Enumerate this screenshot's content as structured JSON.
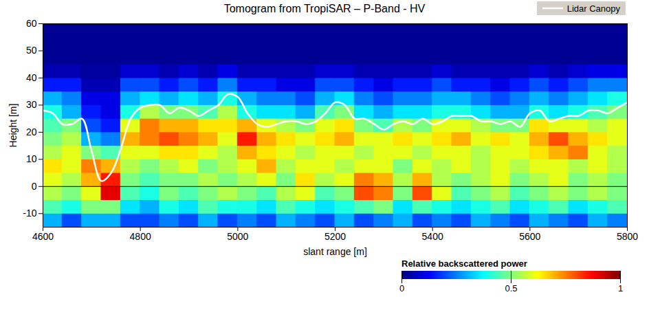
{
  "chart_data": {
    "type": "heatmap",
    "title": "Tomogram from TropiSAR – P-Band - HV",
    "x_label": "slant range [m]",
    "y_label": "Height [m]",
    "xlim": [
      4600,
      5800
    ],
    "xticks": [
      4600,
      4800,
      5000,
      5200,
      5400,
      5600,
      5800
    ],
    "ylim": [
      -15,
      60
    ],
    "yticks": [
      -10,
      0,
      10,
      20,
      30,
      40,
      50,
      60
    ],
    "hline": 0,
    "legend": "top-right",
    "heatmap": {
      "x_edges": [
        4600,
        4640,
        4680,
        4720,
        4760,
        4800,
        4840,
        4880,
        4920,
        4960,
        5000,
        5040,
        5080,
        5120,
        5160,
        5200,
        5240,
        5280,
        5320,
        5360,
        5400,
        5440,
        5480,
        5520,
        5560,
        5600,
        5640,
        5680,
        5720,
        5760,
        5800
      ],
      "y_edges": [
        -15,
        -10,
        -5,
        0,
        5,
        10,
        15,
        20,
        25,
        30,
        35,
        40,
        45,
        50,
        55,
        60
      ],
      "values": [
        [
          0.3,
          0.2,
          0.3,
          0.3,
          0.2,
          0.2,
          0.25,
          0.2,
          0.3,
          0.2,
          0.25,
          0.2,
          0.3,
          0.25,
          0.2,
          0.3,
          0.2,
          0.25,
          0.3,
          0.2,
          0.25,
          0.2,
          0.3,
          0.25,
          0.2,
          0.3,
          0.25,
          0.2,
          0.3,
          0.25
        ],
        [
          0.45,
          0.4,
          0.5,
          0.5,
          0.35,
          0.3,
          0.4,
          0.35,
          0.45,
          0.4,
          0.4,
          0.35,
          0.45,
          0.4,
          0.35,
          0.4,
          0.45,
          0.5,
          0.35,
          0.45,
          0.4,
          0.35,
          0.4,
          0.45,
          0.35,
          0.4,
          0.45,
          0.35,
          0.4,
          0.45
        ],
        [
          0.55,
          0.5,
          0.6,
          0.9,
          0.45,
          0.4,
          0.5,
          0.45,
          0.5,
          0.55,
          0.5,
          0.45,
          0.55,
          0.6,
          0.45,
          0.5,
          0.8,
          0.75,
          0.5,
          0.8,
          0.6,
          0.45,
          0.5,
          0.55,
          0.45,
          0.5,
          0.55,
          0.5,
          0.55,
          0.5
        ],
        [
          0.6,
          0.55,
          0.7,
          0.85,
          0.5,
          0.45,
          0.5,
          0.5,
          0.55,
          0.5,
          0.55,
          0.6,
          0.5,
          0.65,
          0.55,
          0.6,
          0.75,
          0.7,
          0.55,
          0.7,
          0.55,
          0.5,
          0.55,
          0.6,
          0.5,
          0.55,
          0.6,
          0.5,
          0.55,
          0.5
        ],
        [
          0.65,
          0.6,
          0.75,
          0.7,
          0.55,
          0.5,
          0.55,
          0.6,
          0.5,
          0.55,
          0.6,
          0.7,
          0.55,
          0.6,
          0.6,
          0.55,
          0.6,
          0.6,
          0.5,
          0.6,
          0.55,
          0.6,
          0.55,
          0.6,
          0.55,
          0.6,
          0.6,
          0.55,
          0.6,
          0.55
        ],
        [
          0.55,
          0.6,
          0.5,
          0.45,
          0.6,
          0.6,
          0.65,
          0.65,
          0.6,
          0.55,
          0.7,
          0.65,
          0.6,
          0.55,
          0.6,
          0.6,
          0.55,
          0.6,
          0.6,
          0.55,
          0.6,
          0.6,
          0.55,
          0.6,
          0.6,
          0.65,
          0.7,
          0.75,
          0.6,
          0.55
        ],
        [
          0.5,
          0.55,
          0.3,
          0.25,
          0.7,
          0.75,
          0.8,
          0.75,
          0.7,
          0.6,
          0.85,
          0.7,
          0.65,
          0.6,
          0.65,
          0.7,
          0.6,
          0.6,
          0.65,
          0.6,
          0.65,
          0.7,
          0.6,
          0.65,
          0.6,
          0.7,
          0.8,
          0.7,
          0.65,
          0.6
        ],
        [
          0.45,
          0.5,
          0.2,
          0.15,
          0.6,
          0.75,
          0.7,
          0.7,
          0.65,
          0.65,
          0.7,
          0.6,
          0.55,
          0.5,
          0.6,
          0.65,
          0.5,
          0.45,
          0.55,
          0.5,
          0.6,
          0.6,
          0.55,
          0.5,
          0.5,
          0.65,
          0.6,
          0.6,
          0.55,
          0.6
        ],
        [
          0.4,
          0.3,
          0.15,
          0.1,
          0.4,
          0.55,
          0.5,
          0.5,
          0.45,
          0.55,
          0.4,
          0.35,
          0.35,
          0.3,
          0.45,
          0.5,
          0.35,
          0.3,
          0.35,
          0.35,
          0.4,
          0.4,
          0.35,
          0.3,
          0.3,
          0.4,
          0.35,
          0.4,
          0.45,
          0.5
        ],
        [
          0.3,
          0.25,
          0.1,
          0.1,
          0.3,
          0.35,
          0.3,
          0.35,
          0.3,
          0.4,
          0.3,
          0.25,
          0.25,
          0.2,
          0.3,
          0.35,
          0.25,
          0.2,
          0.25,
          0.25,
          0.3,
          0.3,
          0.25,
          0.2,
          0.25,
          0.3,
          0.25,
          0.3,
          0.35,
          0.4
        ],
        [
          0.15,
          0.15,
          0.05,
          0.05,
          0.2,
          0.2,
          0.15,
          0.2,
          0.15,
          0.25,
          0.15,
          0.15,
          0.1,
          0.1,
          0.2,
          0.2,
          0.15,
          0.1,
          0.15,
          0.15,
          0.2,
          0.15,
          0.15,
          0.1,
          0.15,
          0.2,
          0.15,
          0.2,
          0.25,
          0.25
        ],
        [
          0.05,
          0.05,
          0.03,
          0.03,
          0.08,
          0.08,
          0.05,
          0.08,
          0.05,
          0.1,
          0.05,
          0.05,
          0.05,
          0.05,
          0.08,
          0.08,
          0.05,
          0.05,
          0.05,
          0.05,
          0.08,
          0.05,
          0.05,
          0.05,
          0.05,
          0.08,
          0.05,
          0.08,
          0.1,
          0.1
        ],
        [
          0.02,
          0.02,
          0.02,
          0.02,
          0.02,
          0.02,
          0.02,
          0.02,
          0.02,
          0.02,
          0.02,
          0.02,
          0.02,
          0.02,
          0.02,
          0.02,
          0.02,
          0.02,
          0.02,
          0.02,
          0.02,
          0.02,
          0.02,
          0.02,
          0.02,
          0.02,
          0.02,
          0.02,
          0.02,
          0.02
        ],
        [
          0.02,
          0.02,
          0.02,
          0.02,
          0.02,
          0.02,
          0.02,
          0.02,
          0.02,
          0.02,
          0.02,
          0.02,
          0.02,
          0.02,
          0.02,
          0.02,
          0.02,
          0.02,
          0.02,
          0.02,
          0.02,
          0.02,
          0.02,
          0.02,
          0.02,
          0.02,
          0.02,
          0.02,
          0.02,
          0.02
        ],
        [
          0.02,
          0.02,
          0.02,
          0.02,
          0.02,
          0.02,
          0.02,
          0.02,
          0.02,
          0.02,
          0.02,
          0.02,
          0.02,
          0.02,
          0.02,
          0.02,
          0.02,
          0.02,
          0.02,
          0.02,
          0.02,
          0.02,
          0.02,
          0.02,
          0.02,
          0.02,
          0.02,
          0.02,
          0.02,
          0.02
        ]
      ]
    },
    "colorbar": {
      "label": "Relative backscattered power",
      "range": [
        0,
        1
      ],
      "ticks": [
        0,
        0.5,
        1
      ]
    },
    "series": [
      {
        "name": "Lidar Canopy",
        "color": "#ffffff",
        "type": "line",
        "x": [
          4600,
          4620,
          4640,
          4660,
          4680,
          4700,
          4720,
          4740,
          4760,
          4780,
          4800,
          4820,
          4840,
          4860,
          4880,
          4900,
          4920,
          4940,
          4960,
          4980,
          5000,
          5020,
          5040,
          5060,
          5080,
          5100,
          5120,
          5140,
          5160,
          5180,
          5200,
          5220,
          5240,
          5260,
          5280,
          5300,
          5320,
          5340,
          5360,
          5380,
          5400,
          5420,
          5440,
          5460,
          5480,
          5500,
          5520,
          5540,
          5560,
          5580,
          5600,
          5620,
          5640,
          5660,
          5680,
          5700,
          5720,
          5740,
          5760,
          5780,
          5800
        ],
        "values": [
          28,
          27,
          23,
          23,
          25,
          13,
          2,
          5,
          14,
          25,
          29,
          30,
          30,
          27,
          29,
          28,
          26,
          28,
          30,
          34,
          33,
          27,
          23,
          22,
          23,
          24,
          24,
          23,
          24,
          27,
          31,
          30,
          25,
          25,
          23,
          21,
          23,
          24,
          23,
          25,
          23,
          24,
          26,
          26,
          26,
          24,
          24,
          23,
          24,
          22,
          27,
          28,
          24,
          25,
          26,
          26,
          28,
          28,
          27,
          29,
          31
        ]
      }
    ]
  }
}
